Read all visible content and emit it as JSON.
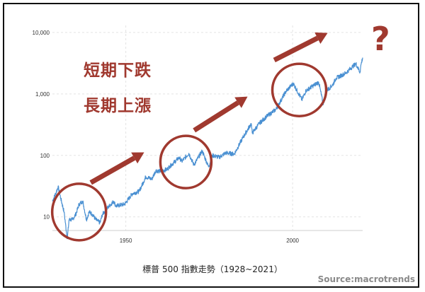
{
  "caption": "標普 500 指數走勢（1928~2021）",
  "source": "Source:macrotrends",
  "headline": {
    "line1": "短期下跌",
    "line2": "長期上漲"
  },
  "question_mark": "?",
  "colors": {
    "series": "#4a90d2",
    "annotation": "#a0392f",
    "grid": "#e3e3e3"
  },
  "chart_data": {
    "type": "line",
    "title": "",
    "xlabel": "",
    "ylabel": "",
    "yscale": "log",
    "xlim": [
      1928,
      2021
    ],
    "ylim": [
      6,
      13000
    ],
    "y_ticks": [
      "10",
      "100",
      "1,000",
      "10,000"
    ],
    "x_ticks": [
      "1950",
      "2000"
    ],
    "grid": true,
    "series": [
      {
        "x": [
          1928,
          1929,
          1929.7,
          1930.5,
          1931.5,
          1932.45,
          1933,
          1934,
          1935,
          1936,
          1937.1,
          1938.2,
          1939,
          1940,
          1941,
          1942.3,
          1943,
          1945,
          1946.4,
          1947,
          1949.5,
          1950,
          1952,
          1954,
          1956,
          1957.8,
          1959,
          1960,
          1962.4,
          1963,
          1966,
          1966.8,
          1968.9,
          1970.4,
          1972.9,
          1974.8,
          1976,
          1978,
          1980,
          1982.5,
          1985,
          1987.6,
          1987.9,
          1990,
          1992,
          1995,
          1998,
          2000.2,
          2002.8,
          2004,
          2007.8,
          2009.2,
          2010,
          2012,
          2013,
          2015,
          2016,
          2018,
          2019,
          2020.2,
          2020.5,
          2021
        ],
        "y": [
          18,
          24,
          31,
          20,
          12,
          4.4,
          9,
          9,
          11,
          16,
          18,
          9,
          12,
          11,
          9,
          8,
          11,
          15,
          18,
          15,
          16,
          17,
          24,
          26,
          45,
          41,
          57,
          55,
          59,
          65,
          92,
          80,
          108,
          70,
          118,
          65,
          100,
          93,
          110,
          105,
          190,
          330,
          230,
          330,
          420,
          560,
          1100,
          1480,
          800,
          1130,
          1560,
          676,
          1100,
          1400,
          1800,
          2050,
          2200,
          2800,
          3100,
          2250,
          3000,
          3900
        ]
      }
    ],
    "annotations": [
      "短期下跌",
      "長期上漲",
      "?"
    ]
  }
}
